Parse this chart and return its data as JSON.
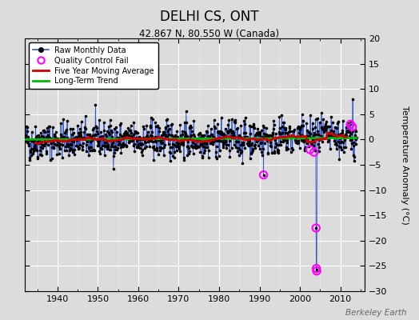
{
  "title": "DELHI CS, ONT",
  "subtitle": "42.867 N, 80.550 W (Canada)",
  "ylabel": "Temperature Anomaly (°C)",
  "watermark": "Berkeley Earth",
  "xlim": [
    1932,
    2016
  ],
  "ylim": [
    -30,
    20
  ],
  "yticks": [
    -30,
    -25,
    -20,
    -15,
    -10,
    -5,
    0,
    5,
    10,
    15,
    20
  ],
  "xticks": [
    1940,
    1950,
    1960,
    1970,
    1980,
    1990,
    2000,
    2010
  ],
  "start_year": 1932,
  "end_year": 2014,
  "bg_color": "#dcdcdc",
  "fig_color": "#dcdcdc",
  "raw_line_color": "#3355cc",
  "raw_dot_color": "#000000",
  "qc_fail_color": "#ff00ff",
  "moving_avg_color": "#cc0000",
  "trend_color": "#00bb00",
  "legend_items": [
    {
      "label": "Raw Monthly Data"
    },
    {
      "label": "Quality Control Fail"
    },
    {
      "label": "Five Year Moving Average"
    },
    {
      "label": "Long-Term Trend"
    }
  ],
  "qc_fail_points": [
    {
      "year": 1991.0,
      "value": -7.0
    },
    {
      "year": 2002.5,
      "value": -2.0
    },
    {
      "year": 2003.5,
      "value": -2.5
    },
    {
      "year": 2004.0,
      "value": -17.5
    },
    {
      "year": 2004.08,
      "value": -25.5
    },
    {
      "year": 2004.17,
      "value": -26.0
    },
    {
      "year": 2012.5,
      "value": 3.0
    },
    {
      "year": 2013.0,
      "value": 2.5
    }
  ]
}
